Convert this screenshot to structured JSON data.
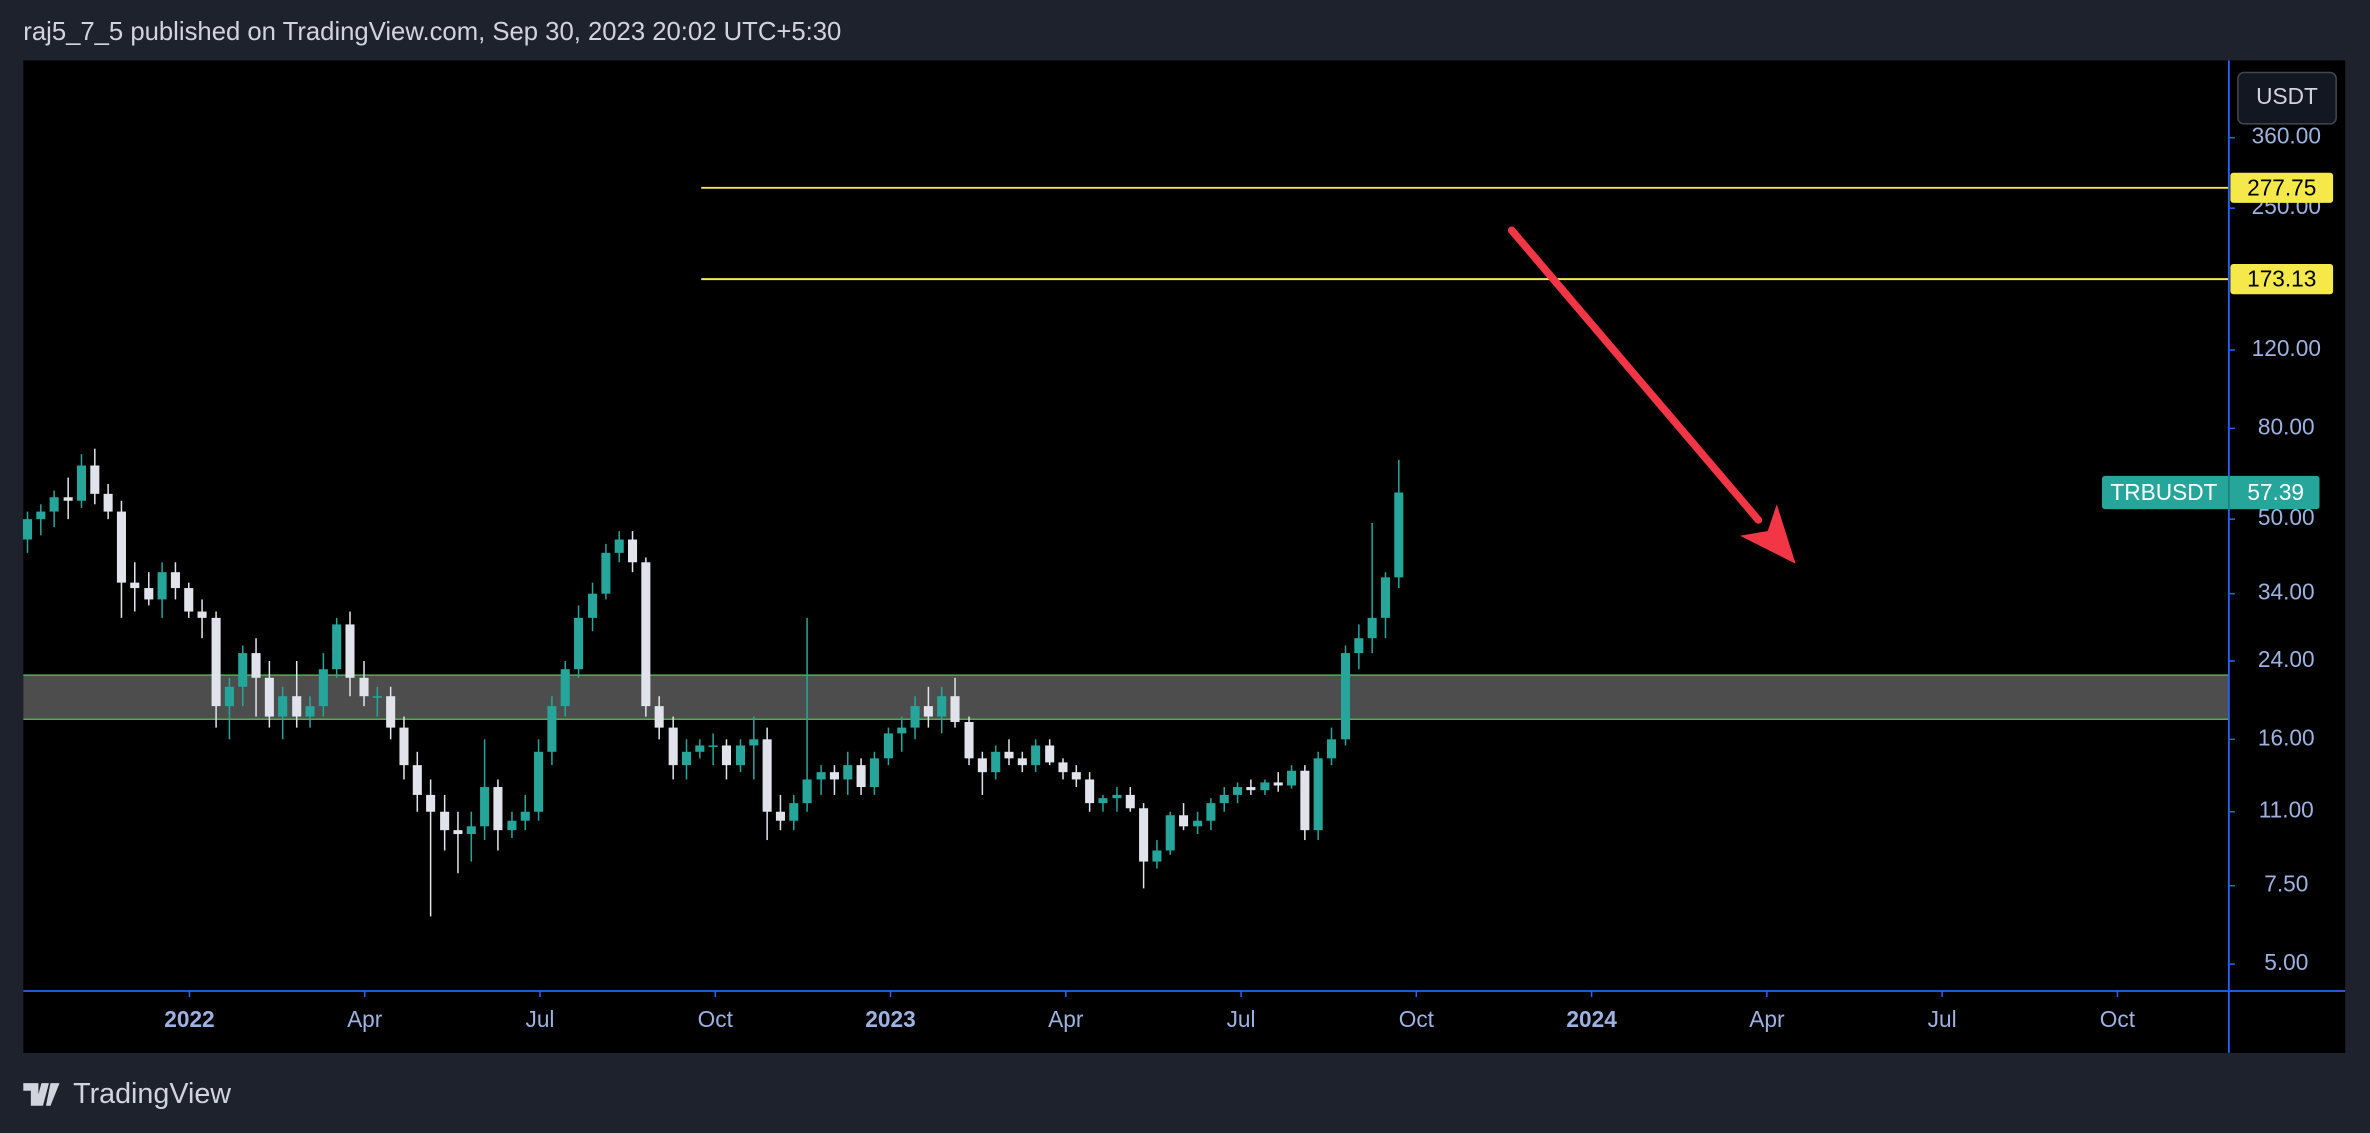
{
  "header": {
    "title": "raj5_7_5 published on TradingView.com, Sep 30, 2023 20:02 UTC+5:30"
  },
  "footer": {
    "brand": "TradingView"
  },
  "currency_button": "USDT",
  "chart_data": {
    "type": "candlestick",
    "name": "TRBUSDT",
    "log_scale": true,
    "grid": false,
    "up_color": "#26a69a",
    "down_color": "#e0e3eb",
    "xlim": [
      2021.763,
      2024.909
    ],
    "ylim": [
      4.35,
      537
    ],
    "xticks": [
      {
        "value": 2022,
        "label": "2022"
      },
      {
        "value": 2022.25,
        "label": "Apr"
      },
      {
        "value": 2022.5,
        "label": "Jul"
      },
      {
        "value": 2022.75,
        "label": "Oct"
      },
      {
        "value": 2023,
        "label": "2023"
      },
      {
        "value": 2023.25,
        "label": "Apr"
      },
      {
        "value": 2023.5,
        "label": "Jul"
      },
      {
        "value": 2023.75,
        "label": "Oct"
      },
      {
        "value": 2024,
        "label": "2024"
      },
      {
        "value": 2024.25,
        "label": "Apr"
      },
      {
        "value": 2024.5,
        "label": "Jul"
      },
      {
        "value": 2024.75,
        "label": "Oct"
      }
    ],
    "yticks": [
      {
        "value": 5,
        "label": "5.00"
      },
      {
        "value": 7.5,
        "label": "7.50"
      },
      {
        "value": 11,
        "label": "11.00"
      },
      {
        "value": 16,
        "label": "16.00"
      },
      {
        "value": 24,
        "label": "24.00"
      },
      {
        "value": 34,
        "label": "34.00"
      },
      {
        "value": 50,
        "label": "50.00"
      },
      {
        "value": 80,
        "label": "80.00"
      },
      {
        "value": 120,
        "label": "120.00"
      },
      {
        "value": 250,
        "label": "250.00"
      },
      {
        "value": 360,
        "label": "360.00"
      }
    ],
    "x": [
      2021.769,
      2021.788,
      2021.807,
      2021.827,
      2021.846,
      2021.865,
      2021.884,
      2021.903,
      2021.922,
      2021.942,
      2021.961,
      2021.98,
      2021.999,
      2022.018,
      2022.038,
      2022.057,
      2022.076,
      2022.095,
      2022.114,
      2022.133,
      2022.153,
      2022.172,
      2022.191,
      2022.21,
      2022.229,
      2022.249,
      2022.268,
      2022.287,
      2022.306,
      2022.325,
      2022.344,
      2022.364,
      2022.383,
      2022.402,
      2022.421,
      2022.44,
      2022.46,
      2022.479,
      2022.498,
      2022.517,
      2022.536,
      2022.555,
      2022.575,
      2022.594,
      2022.613,
      2022.632,
      2022.651,
      2022.67,
      2022.69,
      2022.709,
      2022.728,
      2022.747,
      2022.766,
      2022.786,
      2022.805,
      2022.824,
      2022.843,
      2022.862,
      2022.881,
      2022.901,
      2022.92,
      2022.939,
      2022.958,
      2022.977,
      2022.997,
      2023.016,
      2023.035,
      2023.054,
      2023.073,
      2023.092,
      2023.112,
      2023.131,
      2023.15,
      2023.169,
      2023.188,
      2023.207,
      2023.227,
      2023.246,
      2023.265,
      2023.284,
      2023.303,
      2023.323,
      2023.342,
      2023.361,
      2023.38,
      2023.399,
      2023.418,
      2023.438,
      2023.457,
      2023.476,
      2023.495,
      2023.514,
      2023.534,
      2023.553,
      2023.572,
      2023.591,
      2023.61,
      2023.629,
      2023.649,
      2023.668,
      2023.687,
      2023.706,
      2023.725
    ],
    "open": [
      45,
      50,
      52,
      56,
      55,
      66,
      57,
      52,
      36,
      35,
      33,
      38,
      35,
      31,
      30,
      19,
      21,
      25,
      22,
      18,
      20,
      18,
      19,
      23,
      29,
      22,
      20,
      20,
      17,
      14,
      12,
      11,
      10,
      9.8,
      10.2,
      12.5,
      10,
      10.5,
      11,
      15,
      19,
      23,
      30,
      34,
      42,
      45,
      40,
      19,
      17,
      14,
      15,
      15.5,
      15.5,
      14,
      15.5,
      16,
      11,
      10.5,
      11.5,
      13,
      13.5,
      13,
      14,
      12.5,
      14.5,
      16.5,
      17,
      19,
      18,
      20,
      17.5,
      14.5,
      13.5,
      15,
      14.5,
      14,
      15.5,
      14.2,
      13.5,
      13,
      11.5,
      11.8,
      12,
      11.2,
      8.5,
      9,
      10.8,
      10.2,
      10.5,
      11.5,
      12,
      12.5,
      12.3,
      12.8,
      12.6,
      13.6,
      10,
      14.5,
      16,
      25,
      27,
      30,
      37
    ],
    "high": [
      52,
      54,
      58,
      62,
      70,
      72,
      60,
      55,
      40,
      38,
      40,
      40,
      36,
      33,
      31,
      22,
      26,
      27,
      24,
      21,
      24,
      20,
      25,
      30,
      31,
      24,
      21,
      21,
      18,
      15,
      13,
      12,
      11,
      11,
      16,
      13,
      11,
      12,
      16,
      20,
      24,
      32,
      36,
      44,
      47,
      47,
      41,
      20,
      18,
      16,
      16,
      16.5,
      16,
      16,
      18,
      17,
      12,
      12,
      30,
      14,
      14,
      15,
      14.5,
      15,
      17,
      18,
      20,
      21,
      21,
      22,
      18,
      15,
      15.5,
      16,
      15,
      16,
      16,
      14.5,
      14,
      13.5,
      12,
      12.5,
      12.5,
      11.5,
      9.5,
      11,
      11.5,
      11,
      11.8,
      12.5,
      12.8,
      13,
      13,
      13.5,
      14,
      14,
      15,
      17,
      26,
      29,
      49,
      38,
      68
    ],
    "low": [
      42,
      46,
      48,
      50,
      53,
      54,
      50,
      30,
      31,
      32,
      30,
      33,
      30,
      27,
      17,
      16,
      19,
      18,
      17,
      16,
      17,
      17,
      18,
      22,
      20,
      19,
      18,
      16,
      13,
      11,
      6.4,
      9,
      8,
      8.5,
      9.5,
      9,
      9.6,
      10,
      10.5,
      14,
      18,
      22,
      28,
      33,
      40,
      38,
      18,
      16,
      13,
      13,
      14.5,
      14,
      13,
      13.5,
      13,
      9.5,
      10,
      10,
      11,
      12,
      12,
      12,
      12,
      12,
      14,
      15,
      16,
      17,
      16.5,
      17,
      14,
      12,
      13,
      14,
      13.5,
      13.5,
      14,
      13,
      12.5,
      11,
      11,
      11,
      11,
      7.4,
      8.2,
      8.8,
      10,
      9.8,
      10,
      11,
      11.5,
      12,
      12,
      12.2,
      12.4,
      9.5,
      9.5,
      14,
      15.5,
      23,
      25,
      27,
      35
    ],
    "close": [
      50,
      52,
      56,
      55,
      66,
      57,
      52,
      36,
      35,
      33,
      38,
      35,
      31,
      30,
      19,
      21,
      25,
      22,
      18,
      20,
      18,
      19,
      23,
      29,
      22,
      20,
      20,
      17,
      14,
      12,
      11,
      10,
      9.8,
      10.2,
      12.5,
      10,
      10.5,
      11,
      15,
      19,
      23,
      30,
      34,
      42,
      45,
      40,
      19,
      17,
      14,
      15,
      15.5,
      15.5,
      14,
      15.5,
      16,
      11,
      10.5,
      11.5,
      13,
      13.5,
      13,
      14,
      12.5,
      14.5,
      16.5,
      17,
      19,
      18,
      20,
      17.5,
      14.5,
      13.5,
      15,
      14.5,
      14,
      15.5,
      14.2,
      13.5,
      13,
      11.5,
      11.8,
      12,
      11.2,
      8.5,
      9,
      10.8,
      10.2,
      10.5,
      11.5,
      12,
      12.5,
      12.3,
      12.8,
      12.6,
      13.6,
      10,
      14.5,
      16,
      25,
      27,
      30,
      37,
      57.39
    ],
    "levels": [
      {
        "value": 277.75,
        "x_start": 2022.73,
        "color": "#f5e94a"
      },
      {
        "value": 173.13,
        "x_start": 2022.73,
        "color": "#f5e94a"
      }
    ],
    "zone": {
      "low": 17.75,
      "high": 22.3,
      "fill": "#4d4d4d",
      "border": "#4caf50"
    },
    "arrow": {
      "x": [
        2023.886,
        2024.291
      ],
      "y": [
        223,
        39.7
      ],
      "color": "#f23645"
    }
  }
}
